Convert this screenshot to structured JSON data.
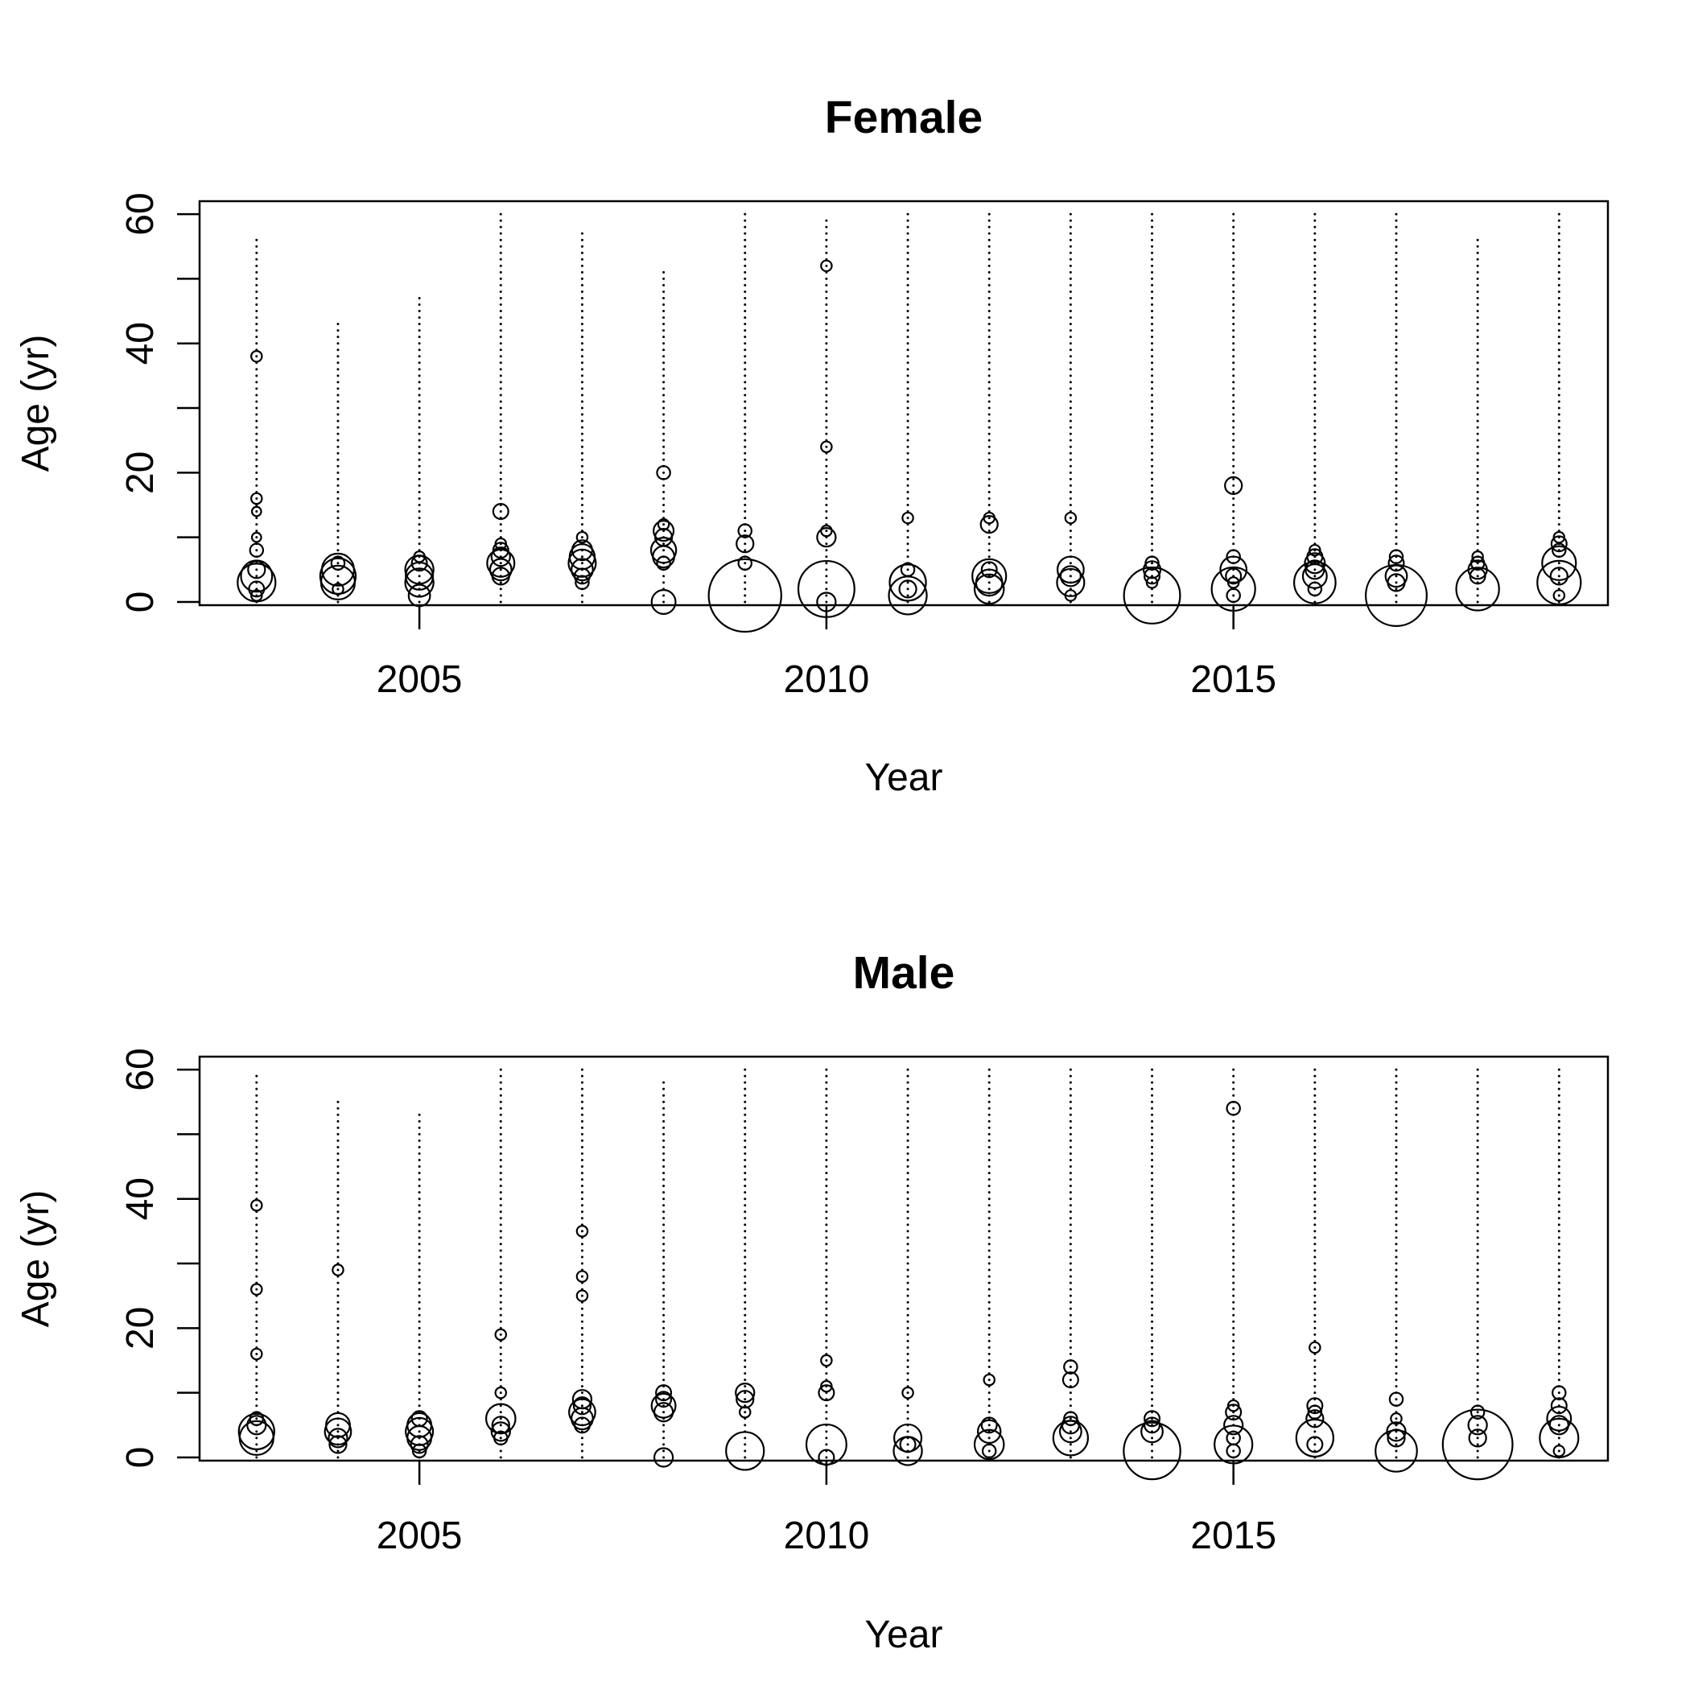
{
  "chart_data": [
    {
      "type": "scatter",
      "title": "Female",
      "xlabel": "Year",
      "ylabel": "Age (yr)",
      "xlim": [
        2002.3,
        2019.6
      ],
      "ylim": [
        -0.5,
        62
      ],
      "xticks": [
        2005,
        2010,
        2015
      ],
      "yticks": [
        0,
        20,
        40,
        60
      ],
      "minor_yticks": [
        10,
        30,
        50
      ],
      "years": [
        2003,
        2004,
        2005,
        2006,
        2007,
        2008,
        2009,
        2010,
        2011,
        2012,
        2013,
        2014,
        2015,
        2016,
        2017,
        2018,
        2019
      ],
      "max_age": [
        56,
        43,
        47,
        60,
        57,
        51,
        60,
        59,
        60,
        60,
        60,
        60,
        60,
        60,
        60,
        56,
        60
      ],
      "points": [
        {
          "year": 2003,
          "age": 3,
          "size": 0.25
        },
        {
          "year": 2003,
          "age": 4,
          "size": 0.17
        },
        {
          "year": 2003,
          "age": 5,
          "size": 0.05
        },
        {
          "year": 2003,
          "age": 2,
          "size": 0.04
        },
        {
          "year": 2003,
          "age": 8,
          "size": 0.03
        },
        {
          "year": 2003,
          "age": 38,
          "size": 0.02
        },
        {
          "year": 2003,
          "age": 16,
          "size": 0.02
        },
        {
          "year": 2003,
          "age": 14,
          "size": 0.015
        },
        {
          "year": 2003,
          "age": 10,
          "size": 0.015
        },
        {
          "year": 2003,
          "age": 1,
          "size": 0.02
        },
        {
          "year": 2004,
          "age": 3,
          "size": 0.2
        },
        {
          "year": 2004,
          "age": 4,
          "size": 0.22
        },
        {
          "year": 2004,
          "age": 5,
          "size": 0.18
        },
        {
          "year": 2004,
          "age": 6,
          "size": 0.03
        },
        {
          "year": 2004,
          "age": 2,
          "size": 0.02
        },
        {
          "year": 2005,
          "age": 3,
          "size": 0.14
        },
        {
          "year": 2005,
          "age": 4,
          "size": 0.13
        },
        {
          "year": 2005,
          "age": 5,
          "size": 0.14
        },
        {
          "year": 2005,
          "age": 1,
          "size": 0.08
        },
        {
          "year": 2005,
          "age": 6,
          "size": 0.04
        },
        {
          "year": 2005,
          "age": 7,
          "size": 0.02
        },
        {
          "year": 2006,
          "age": 6,
          "size": 0.13
        },
        {
          "year": 2006,
          "age": 5,
          "size": 0.08
        },
        {
          "year": 2006,
          "age": 7,
          "size": 0.06
        },
        {
          "year": 2006,
          "age": 4,
          "size": 0.05
        },
        {
          "year": 2006,
          "age": 14,
          "size": 0.04
        },
        {
          "year": 2006,
          "age": 8,
          "size": 0.04
        },
        {
          "year": 2006,
          "age": 9,
          "size": 0.02
        },
        {
          "year": 2007,
          "age": 6,
          "size": 0.13
        },
        {
          "year": 2007,
          "age": 7,
          "size": 0.11
        },
        {
          "year": 2007,
          "age": 5,
          "size": 0.08
        },
        {
          "year": 2007,
          "age": 8,
          "size": 0.07
        },
        {
          "year": 2007,
          "age": 4,
          "size": 0.04
        },
        {
          "year": 2007,
          "age": 3,
          "size": 0.03
        },
        {
          "year": 2007,
          "age": 10,
          "size": 0.02
        },
        {
          "year": 2008,
          "age": 8,
          "size": 0.11
        },
        {
          "year": 2008,
          "age": 7,
          "size": 0.08
        },
        {
          "year": 2008,
          "age": 11,
          "size": 0.07
        },
        {
          "year": 2008,
          "age": 10,
          "size": 0.05
        },
        {
          "year": 2008,
          "age": 0,
          "size": 0.1
        },
        {
          "year": 2008,
          "age": 20,
          "size": 0.03
        },
        {
          "year": 2008,
          "age": 6,
          "size": 0.03
        },
        {
          "year": 2008,
          "age": 12,
          "size": 0.02
        },
        {
          "year": 2009,
          "age": 1,
          "size": 0.92
        },
        {
          "year": 2009,
          "age": 9,
          "size": 0.05
        },
        {
          "year": 2009,
          "age": 11,
          "size": 0.03
        },
        {
          "year": 2009,
          "age": 6,
          "size": 0.03
        },
        {
          "year": 2010,
          "age": 2,
          "size": 0.55
        },
        {
          "year": 2010,
          "age": 10,
          "size": 0.06
        },
        {
          "year": 2010,
          "age": 0,
          "size": 0.06
        },
        {
          "year": 2010,
          "age": 52,
          "size": 0.02
        },
        {
          "year": 2010,
          "age": 24,
          "size": 0.02
        },
        {
          "year": 2010,
          "age": 11,
          "size": 0.02
        },
        {
          "year": 2011,
          "age": 1,
          "size": 0.25
        },
        {
          "year": 2011,
          "age": 3,
          "size": 0.23
        },
        {
          "year": 2011,
          "age": 2,
          "size": 0.05
        },
        {
          "year": 2011,
          "age": 5,
          "size": 0.03
        },
        {
          "year": 2011,
          "age": 13,
          "size": 0.02
        },
        {
          "year": 2012,
          "age": 4,
          "size": 0.2
        },
        {
          "year": 2012,
          "age": 2,
          "size": 0.15
        },
        {
          "year": 2012,
          "age": 3,
          "size": 0.12
        },
        {
          "year": 2012,
          "age": 12,
          "size": 0.05
        },
        {
          "year": 2012,
          "age": 5,
          "size": 0.04
        },
        {
          "year": 2012,
          "age": 13,
          "size": 0.02
        },
        {
          "year": 2013,
          "age": 3,
          "size": 0.13
        },
        {
          "year": 2013,
          "age": 5,
          "size": 0.12
        },
        {
          "year": 2013,
          "age": 4,
          "size": 0.07
        },
        {
          "year": 2013,
          "age": 13,
          "size": 0.02
        },
        {
          "year": 2013,
          "age": 1,
          "size": 0.02
        },
        {
          "year": 2014,
          "age": 1,
          "size": 0.55
        },
        {
          "year": 2014,
          "age": 5,
          "size": 0.05
        },
        {
          "year": 2014,
          "age": 4,
          "size": 0.04
        },
        {
          "year": 2014,
          "age": 6,
          "size": 0.03
        },
        {
          "year": 2014,
          "age": 3,
          "size": 0.02
        },
        {
          "year": 2015,
          "age": 2,
          "size": 0.33
        },
        {
          "year": 2015,
          "age": 5,
          "size": 0.12
        },
        {
          "year": 2015,
          "age": 18,
          "size": 0.05
        },
        {
          "year": 2015,
          "age": 4,
          "size": 0.04
        },
        {
          "year": 2015,
          "age": 7,
          "size": 0.03
        },
        {
          "year": 2015,
          "age": 1,
          "size": 0.03
        },
        {
          "year": 2015,
          "age": 3,
          "size": 0.02
        },
        {
          "year": 2016,
          "age": 3,
          "size": 0.3
        },
        {
          "year": 2016,
          "age": 4,
          "size": 0.1
        },
        {
          "year": 2016,
          "age": 6,
          "size": 0.07
        },
        {
          "year": 2016,
          "age": 5,
          "size": 0.06
        },
        {
          "year": 2016,
          "age": 7,
          "size": 0.04
        },
        {
          "year": 2016,
          "age": 2,
          "size": 0.03
        },
        {
          "year": 2016,
          "age": 8,
          "size": 0.02
        },
        {
          "year": 2017,
          "age": 1,
          "size": 0.65
        },
        {
          "year": 2017,
          "age": 4,
          "size": 0.08
        },
        {
          "year": 2017,
          "age": 3,
          "size": 0.05
        },
        {
          "year": 2017,
          "age": 6,
          "size": 0.04
        },
        {
          "year": 2017,
          "age": 7,
          "size": 0.03
        },
        {
          "year": 2018,
          "age": 2,
          "size": 0.32
        },
        {
          "year": 2018,
          "age": 5,
          "size": 0.06
        },
        {
          "year": 2018,
          "age": 4,
          "size": 0.04
        },
        {
          "year": 2018,
          "age": 6,
          "size": 0.03
        },
        {
          "year": 2018,
          "age": 7,
          "size": 0.02
        },
        {
          "year": 2019,
          "age": 3,
          "size": 0.33
        },
        {
          "year": 2019,
          "age": 6,
          "size": 0.2
        },
        {
          "year": 2019,
          "age": 4,
          "size": 0.05
        },
        {
          "year": 2019,
          "age": 9,
          "size": 0.04
        },
        {
          "year": 2019,
          "age": 8,
          "size": 0.03
        },
        {
          "year": 2019,
          "age": 10,
          "size": 0.02
        },
        {
          "year": 2019,
          "age": 1,
          "size": 0.02
        }
      ]
    },
    {
      "type": "scatter",
      "title": "Male",
      "xlabel": "Year",
      "ylabel": "Age (yr)",
      "xlim": [
        2002.3,
        2019.6
      ],
      "ylim": [
        -0.5,
        62
      ],
      "xticks": [
        2005,
        2010,
        2015
      ],
      "yticks": [
        0,
        20,
        40,
        60
      ],
      "minor_yticks": [
        10,
        30,
        50
      ],
      "years": [
        2003,
        2004,
        2005,
        2006,
        2007,
        2008,
        2009,
        2010,
        2011,
        2012,
        2013,
        2014,
        2015,
        2016,
        2017,
        2018,
        2019
      ],
      "max_age": [
        59,
        55,
        53,
        60,
        60,
        58,
        60,
        60,
        60,
        60,
        60,
        60,
        60,
        60,
        60,
        60,
        60
      ],
      "points": [
        {
          "year": 2003,
          "age": 4,
          "size": 0.22
        },
        {
          "year": 2003,
          "age": 3,
          "size": 0.2
        },
        {
          "year": 2003,
          "age": 5,
          "size": 0.06
        },
        {
          "year": 2003,
          "age": 6,
          "size": 0.03
        },
        {
          "year": 2003,
          "age": 39,
          "size": 0.02
        },
        {
          "year": 2003,
          "age": 26,
          "size": 0.02
        },
        {
          "year": 2003,
          "age": 16,
          "size": 0.02
        },
        {
          "year": 2004,
          "age": 4,
          "size": 0.12
        },
        {
          "year": 2004,
          "age": 5,
          "size": 0.1
        },
        {
          "year": 2004,
          "age": 3,
          "size": 0.06
        },
        {
          "year": 2004,
          "age": 2,
          "size": 0.05
        },
        {
          "year": 2004,
          "age": 29,
          "size": 0.02
        },
        {
          "year": 2005,
          "age": 4,
          "size": 0.13
        },
        {
          "year": 2005,
          "age": 3,
          "size": 0.1
        },
        {
          "year": 2005,
          "age": 5,
          "size": 0.1
        },
        {
          "year": 2005,
          "age": 2,
          "size": 0.05
        },
        {
          "year": 2005,
          "age": 6,
          "size": 0.04
        },
        {
          "year": 2005,
          "age": 1,
          "size": 0.03
        },
        {
          "year": 2006,
          "age": 6,
          "size": 0.15
        },
        {
          "year": 2006,
          "age": 4,
          "size": 0.06
        },
        {
          "year": 2006,
          "age": 5,
          "size": 0.05
        },
        {
          "year": 2006,
          "age": 3,
          "size": 0.03
        },
        {
          "year": 2006,
          "age": 19,
          "size": 0.02
        },
        {
          "year": 2006,
          "age": 10,
          "size": 0.02
        },
        {
          "year": 2007,
          "age": 7,
          "size": 0.12
        },
        {
          "year": 2007,
          "age": 6,
          "size": 0.08
        },
        {
          "year": 2007,
          "age": 9,
          "size": 0.06
        },
        {
          "year": 2007,
          "age": 8,
          "size": 0.05
        },
        {
          "year": 2007,
          "age": 5,
          "size": 0.04
        },
        {
          "year": 2007,
          "age": 35,
          "size": 0.02
        },
        {
          "year": 2007,
          "age": 28,
          "size": 0.02
        },
        {
          "year": 2007,
          "age": 25,
          "size": 0.02
        },
        {
          "year": 2008,
          "age": 8,
          "size": 0.1
        },
        {
          "year": 2008,
          "age": 7,
          "size": 0.06
        },
        {
          "year": 2008,
          "age": 10,
          "size": 0.04
        },
        {
          "year": 2008,
          "age": 9,
          "size": 0.04
        },
        {
          "year": 2008,
          "age": 0,
          "size": 0.06
        },
        {
          "year": 2009,
          "age": 1,
          "size": 0.25
        },
        {
          "year": 2009,
          "age": 10,
          "size": 0.06
        },
        {
          "year": 2009,
          "age": 9,
          "size": 0.05
        },
        {
          "year": 2009,
          "age": 7,
          "size": 0.02
        },
        {
          "year": 2010,
          "age": 2,
          "size": 0.28
        },
        {
          "year": 2010,
          "age": 10,
          "size": 0.04
        },
        {
          "year": 2010,
          "age": 15,
          "size": 0.02
        },
        {
          "year": 2010,
          "age": 0,
          "size": 0.04
        },
        {
          "year": 2010,
          "age": 11,
          "size": 0.02
        },
        {
          "year": 2011,
          "age": 1,
          "size": 0.14
        },
        {
          "year": 2011,
          "age": 3,
          "size": 0.13
        },
        {
          "year": 2011,
          "age": 2,
          "size": 0.04
        },
        {
          "year": 2011,
          "age": 10,
          "size": 0.02
        },
        {
          "year": 2012,
          "age": 2,
          "size": 0.15
        },
        {
          "year": 2012,
          "age": 4,
          "size": 0.09
        },
        {
          "year": 2012,
          "age": 5,
          "size": 0.04
        },
        {
          "year": 2012,
          "age": 1,
          "size": 0.03
        },
        {
          "year": 2012,
          "age": 12,
          "size": 0.02
        },
        {
          "year": 2013,
          "age": 3,
          "size": 0.21
        },
        {
          "year": 2013,
          "age": 4,
          "size": 0.08
        },
        {
          "year": 2013,
          "age": 5,
          "size": 0.05
        },
        {
          "year": 2013,
          "age": 12,
          "size": 0.04
        },
        {
          "year": 2013,
          "age": 14,
          "size": 0.03
        },
        {
          "year": 2013,
          "age": 6,
          "size": 0.03
        },
        {
          "year": 2014,
          "age": 1,
          "size": 0.56
        },
        {
          "year": 2014,
          "age": 4,
          "size": 0.08
        },
        {
          "year": 2014,
          "age": 6,
          "size": 0.04
        },
        {
          "year": 2014,
          "age": 5,
          "size": 0.04
        },
        {
          "year": 2015,
          "age": 2,
          "size": 0.25
        },
        {
          "year": 2015,
          "age": 5,
          "size": 0.06
        },
        {
          "year": 2015,
          "age": 7,
          "size": 0.04
        },
        {
          "year": 2015,
          "age": 54,
          "size": 0.03
        },
        {
          "year": 2015,
          "age": 3,
          "size": 0.03
        },
        {
          "year": 2015,
          "age": 1,
          "size": 0.03
        },
        {
          "year": 2015,
          "age": 8,
          "size": 0.02
        },
        {
          "year": 2016,
          "age": 3,
          "size": 0.24
        },
        {
          "year": 2016,
          "age": 6,
          "size": 0.05
        },
        {
          "year": 2016,
          "age": 8,
          "size": 0.04
        },
        {
          "year": 2016,
          "age": 2,
          "size": 0.04
        },
        {
          "year": 2016,
          "age": 7,
          "size": 0.03
        },
        {
          "year": 2016,
          "age": 17,
          "size": 0.02
        },
        {
          "year": 2017,
          "age": 1,
          "size": 0.3
        },
        {
          "year": 2017,
          "age": 4,
          "size": 0.06
        },
        {
          "year": 2017,
          "age": 3,
          "size": 0.05
        },
        {
          "year": 2017,
          "age": 9,
          "size": 0.03
        },
        {
          "year": 2017,
          "age": 6,
          "size": 0.02
        },
        {
          "year": 2018,
          "age": 2,
          "size": 0.85
        },
        {
          "year": 2018,
          "age": 5,
          "size": 0.06
        },
        {
          "year": 2018,
          "age": 3,
          "size": 0.05
        },
        {
          "year": 2018,
          "age": 7,
          "size": 0.03
        },
        {
          "year": 2019,
          "age": 3,
          "size": 0.26
        },
        {
          "year": 2019,
          "age": 6,
          "size": 0.1
        },
        {
          "year": 2019,
          "age": 5,
          "size": 0.06
        },
        {
          "year": 2019,
          "age": 8,
          "size": 0.04
        },
        {
          "year": 2019,
          "age": 10,
          "size": 0.03
        },
        {
          "year": 2019,
          "age": 1,
          "size": 0.02
        }
      ]
    }
  ]
}
